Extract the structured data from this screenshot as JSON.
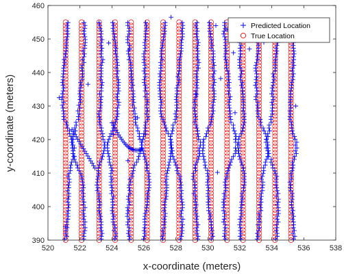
{
  "chart_data": {
    "type": "scatter",
    "title": "",
    "xlabel": "x-coordinate (meters)",
    "ylabel": "y-coordinate (meters)",
    "xlim": [
      520,
      538
    ],
    "ylim": [
      390,
      460
    ],
    "xticks": [
      "520",
      "522",
      "524",
      "526",
      "528",
      "530",
      "532",
      "534",
      "536",
      "538"
    ],
    "yticks": [
      "390",
      "400",
      "410",
      "420",
      "430",
      "440",
      "450",
      "460"
    ],
    "grid": false,
    "legend_position": "top-right",
    "true_columns_x": [
      521.1,
      522.1,
      523.2,
      524.2,
      525.2,
      526.2,
      527.2,
      528.2,
      529.2,
      530.2,
      531.2,
      532.2,
      533.2,
      534.2,
      535.2
    ],
    "true_y_range": [
      390,
      455.5
    ],
    "true_y_step": 1.0,
    "predicted_outliers": {
      "x": [
        520.7,
        522.5,
        521.1,
        524.1,
        523.8,
        525.0,
        525.6,
        527.7,
        530.8,
        531.2,
        531.7,
        532.6,
        533.5,
        535.5,
        526.1,
        529.3,
        530.6,
        531.6,
        525.1,
        530.5
      ],
      "y": [
        432.5,
        436.5,
        394.0,
        421.5,
        448.8,
        413.7,
        426.5,
        456.5,
        438.2,
        452.8,
        428.0,
        447.0,
        449.0,
        430.0,
        421.6,
        433.5,
        410.2,
        445.9,
        446.8,
        454.0
      ]
    },
    "series": [
      {
        "name": "Predicted Location",
        "marker": "+",
        "color": "#0000ff"
      },
      {
        "name": "True Location",
        "marker": "o",
        "color": "#ff0000"
      }
    ]
  }
}
